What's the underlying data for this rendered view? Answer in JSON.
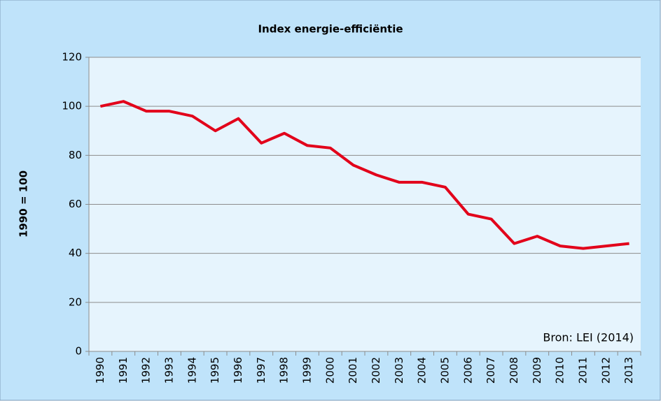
{
  "chart_data": {
    "type": "line",
    "title": "Index energie-efficiëntie",
    "y_label": "1990 = 100",
    "annotation": "Bron: LEI (2014)",
    "categories": [
      "1990",
      "1991",
      "1992",
      "1993",
      "1994",
      "1995",
      "1996",
      "1997",
      "1998",
      "1999",
      "2000",
      "2001",
      "2002",
      "2003",
      "2004",
      "2005",
      "2006",
      "2007",
      "2008",
      "2009",
      "2010",
      "2011",
      "2012",
      "2013"
    ],
    "series": [
      {
        "name": "Index energie-efficiëntie",
        "color": "#e2001a",
        "values": [
          100,
          102,
          98,
          98,
          96,
          90,
          95,
          85,
          89,
          84,
          83,
          76,
          72,
          69,
          69,
          67,
          56,
          54,
          44,
          47,
          43,
          42,
          43,
          44
        ]
      }
    ],
    "ylim": [
      0,
      120
    ],
    "yticks": [
      0,
      20,
      40,
      60,
      80,
      100,
      120
    ],
    "grid": true
  }
}
